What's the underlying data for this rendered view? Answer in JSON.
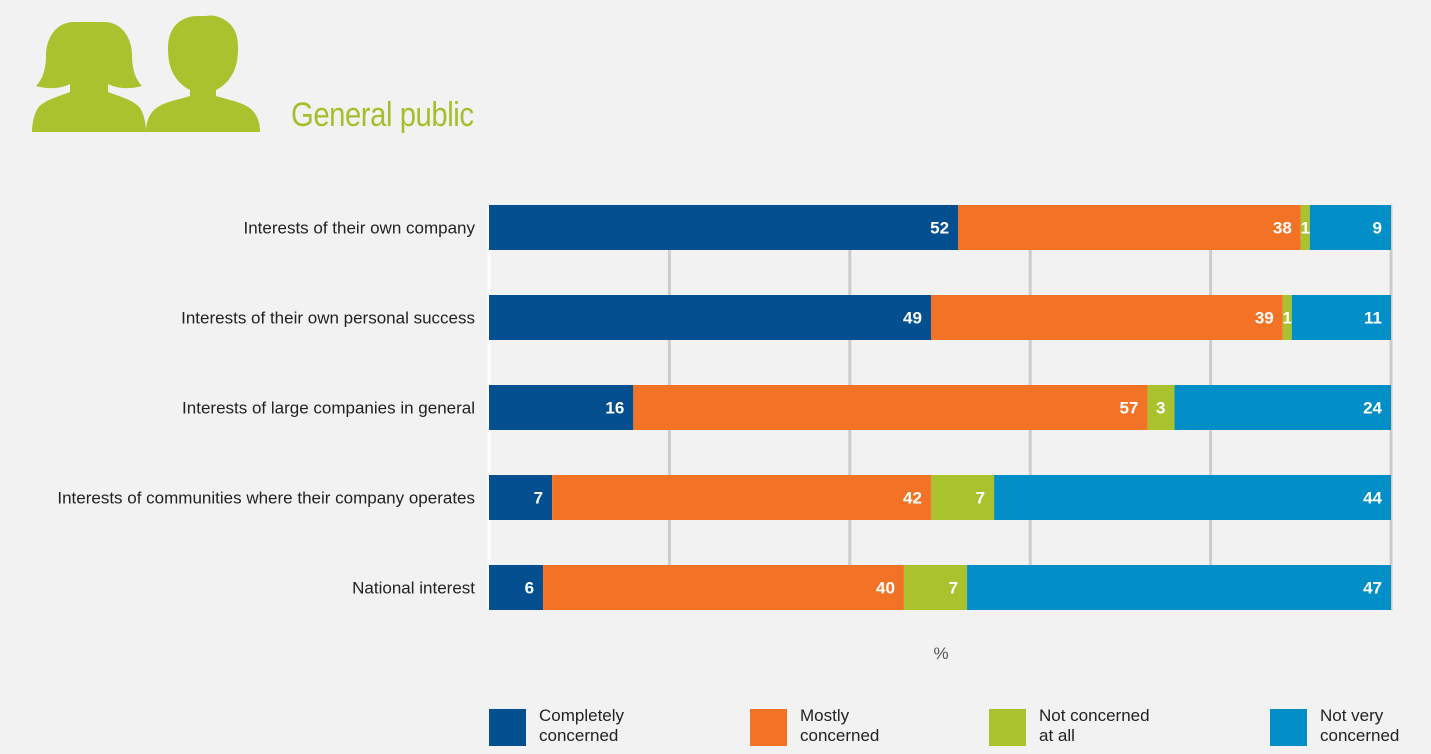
{
  "header": {
    "title": "General public",
    "icon": "people-icon",
    "title_color": "#a5bf2c"
  },
  "chart_data": {
    "type": "bar",
    "orientation": "horizontal",
    "stacked": true,
    "title": "General public",
    "xlabel": "%",
    "xlim": [
      0,
      100
    ],
    "grid": true,
    "legend_position": "bottom",
    "categories": [
      "Interests of their own company",
      "Interests of their own personal success",
      "Interests of large companies in general",
      "Interests of communities where their company operates",
      "National interest"
    ],
    "series": [
      {
        "name": "Completely concerned",
        "color": "#034f8f",
        "values": [
          52,
          49,
          16,
          7,
          6
        ]
      },
      {
        "name": "Mostly concerned",
        "color": "#f27326",
        "values": [
          38,
          39,
          57,
          42,
          40
        ]
      },
      {
        "name": "Not concerned at all",
        "color": "#a9c22d",
        "values": [
          1,
          1,
          3,
          7,
          7
        ]
      },
      {
        "name": "Not very concerned",
        "color": "#028fc7",
        "values": [
          9,
          11,
          24,
          44,
          47
        ]
      }
    ]
  },
  "legend": [
    {
      "line1": "Completely",
      "line2": "concerned",
      "color": "#034f8f"
    },
    {
      "line1": "Mostly",
      "line2": "concerned",
      "color": "#f27326"
    },
    {
      "line1": "Not concerned",
      "line2": "at all",
      "color": "#a9c22d"
    },
    {
      "line1": "Not very",
      "line2": "concerned",
      "color": "#028fc7"
    }
  ]
}
